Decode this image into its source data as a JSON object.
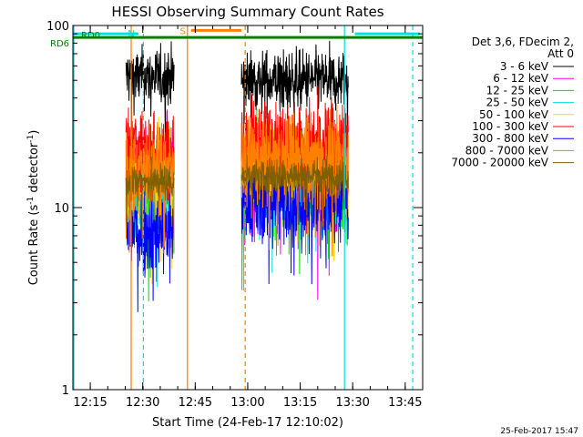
{
  "chart_data": {
    "type": "line",
    "title": "HESSI Observing Summary Count Rates",
    "xlabel": "Start Time (24-Feb-17 12:10:02)",
    "ylabel_main": "Count Rate (s",
    "ylabel_exp1": "-1",
    "ylabel_mid": " detector",
    "ylabel_exp2": "-1",
    "ylabel_end": ")",
    "y_scale": "log",
    "xlim": [
      12.1672,
      13.8333
    ],
    "ylim": [
      1,
      100
    ],
    "x_ticks": [
      {
        "value": 12.25,
        "label": "12:15"
      },
      {
        "value": 12.5,
        "label": "12:30"
      },
      {
        "value": 12.75,
        "label": "12:45"
      },
      {
        "value": 13.0,
        "label": "13:00"
      },
      {
        "value": 13.25,
        "label": "13:15"
      },
      {
        "value": 13.5,
        "label": "13:30"
      },
      {
        "value": 13.75,
        "label": "13:45"
      }
    ],
    "y_ticks": [
      {
        "value": 1,
        "label": "1"
      },
      {
        "value": 10,
        "label": "10"
      },
      {
        "value": 100,
        "label": "100"
      }
    ],
    "legend_header": [
      "Det 3,6, FDecim 2,",
      "Att 0"
    ],
    "legend_position": "right-outside",
    "intervals": [
      {
        "start": 12.42,
        "end": 12.65
      },
      {
        "start": 12.97,
        "end": 13.48
      }
    ],
    "series": [
      {
        "name": "3 - 6 keV",
        "color": "#000000",
        "level": [
          52,
          50
        ],
        "spread": 0.08
      },
      {
        "name": "6 - 12 keV",
        "color": "#ff00ff",
        "level": [
          14,
          13
        ],
        "spread": 0.13
      },
      {
        "name": "12 - 25 keV",
        "color": "#00e000",
        "level": [
          11,
          14
        ],
        "spread": 0.13
      },
      {
        "name": "25 - 50 keV",
        "color": "#00e0e0",
        "level": [
          12,
          13
        ],
        "spread": 0.12
      },
      {
        "name": "50 - 100 keV",
        "color": "#ffd700",
        "level": [
          15,
          16
        ],
        "spread": 0.12
      },
      {
        "name": "100 - 300 keV",
        "color": "#ff0000",
        "level": [
          20,
          22
        ],
        "spread": 0.12
      },
      {
        "name": "300 - 800 keV",
        "color": "#0000ff",
        "level": [
          7.5,
          11
        ],
        "spread": 0.12
      },
      {
        "name": "800 - 7000 keV",
        "color": "#ff8000",
        "level": [
          16,
          18
        ],
        "spread": 0.12
      },
      {
        "name": "7000 - 20000 keV",
        "color": "#806000",
        "level": [
          14,
          15
        ],
        "spread": 0.05
      }
    ],
    "flags": {
      "night_bars": [
        {
          "label": "N",
          "start": 12.17,
          "end": 12.48,
          "y": 90,
          "color": "#00e0e0"
        },
        {
          "label": "",
          "start": 13.51,
          "end": 13.82,
          "y": 90,
          "color": "#00e0e0"
        }
      ],
      "saa_bar": {
        "label": "S",
        "start": 12.73,
        "end": 12.97,
        "y": 94,
        "color": "#ff8000"
      },
      "decim_line": {
        "label": "RD6",
        "y": 86,
        "color": "#008000"
      },
      "decim_line2": {
        "label": "RD0",
        "color": "#008000"
      },
      "vlines": [
        {
          "x": 12.445,
          "color": "#ff8000",
          "style": "solid"
        },
        {
          "x": 12.713,
          "color": "#ff8000",
          "style": "solid"
        },
        {
          "x": 12.988,
          "color": "#ff8000",
          "style": "dashed"
        },
        {
          "x": 12.503,
          "color": "#00e0e0",
          "style": "dashed"
        },
        {
          "x": 13.461,
          "color": "#00e0e0",
          "style": "solid"
        },
        {
          "x": 13.786,
          "color": "#00e0e0",
          "style": "dashed"
        },
        {
          "x": 12.172,
          "color": "#00e0e0",
          "style": "solid"
        }
      ]
    }
  },
  "footer": {
    "timestamp": "25-Feb-2017 15:47"
  }
}
